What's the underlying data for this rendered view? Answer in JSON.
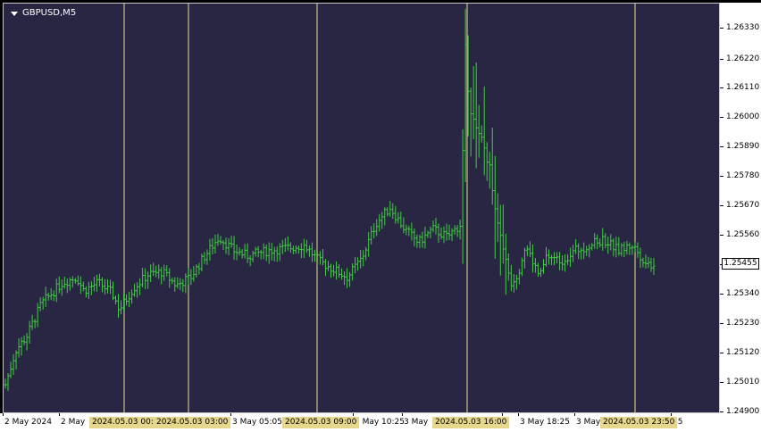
{
  "window": {
    "symbol_label": "GBPUSD,M5"
  },
  "price_axis": {
    "labels": [
      "1.26330",
      "1.26220",
      "1.26110",
      "1.26000",
      "1.25890",
      "1.25780",
      "1.25670",
      "1.25560",
      "1.25450",
      "1.25340",
      "1.25230",
      "1.25120",
      "1.25010",
      "1.24900"
    ],
    "current_price": "1.25455"
  },
  "time_axis": {
    "labels": [
      "2 May 2024",
      "2 May",
      "3 May 05:05",
      "3 May 10:25",
      "3 May",
      "5",
      "3 May 18:25",
      "3 May",
      "45"
    ]
  },
  "vertical_lines": [
    "2024.05.03 00:0",
    "2024.05.03 03:00",
    "2024.05.03 09:00",
    "2024.05.03 16:00",
    "2024.05.03 23:50"
  ],
  "colors": {
    "background": "#282642",
    "bars": "#3fcf3f",
    "vertical_line": "#ecdc8c",
    "label_bg": "#e6d78c"
  },
  "chart_data": {
    "type": "ohlc",
    "instrument": "GBPUSD",
    "timeframe": "M5",
    "ylim": [
      1.249,
      1.2638
    ],
    "close_path": [
      [
        0,
        1.25
      ],
      [
        1.5,
        1.2513
      ],
      [
        3,
        1.2518
      ],
      [
        5,
        1.253
      ],
      [
        8,
        1.2538
      ],
      [
        10,
        1.254
      ],
      [
        11,
        1.2535
      ],
      [
        13,
        1.2538
      ],
      [
        15,
        1.2534
      ],
      [
        16,
        1.2528
      ],
      [
        18,
        1.2536
      ],
      [
        20,
        1.2541
      ],
      [
        22,
        1.2542
      ],
      [
        24,
        1.2537
      ],
      [
        26,
        1.254
      ],
      [
        28,
        1.2548
      ],
      [
        30,
        1.2555
      ],
      [
        32,
        1.255
      ],
      [
        34,
        1.2548
      ],
      [
        37,
        1.255
      ],
      [
        40,
        1.2551
      ],
      [
        42,
        1.2552
      ],
      [
        44,
        1.2546
      ],
      [
        46,
        1.2543
      ],
      [
        48,
        1.254
      ],
      [
        50,
        1.2547
      ],
      [
        52,
        1.256
      ],
      [
        54,
        1.2566
      ],
      [
        56,
        1.2558
      ],
      [
        58,
        1.2553
      ],
      [
        60,
        1.2558
      ],
      [
        62,
        1.2555
      ],
      [
        64,
        1.256
      ],
      [
        64.5,
        1.263
      ],
      [
        65,
        1.2605
      ],
      [
        66,
        1.2595
      ],
      [
        67,
        1.259
      ],
      [
        68,
        1.258
      ],
      [
        69,
        1.256
      ],
      [
        70,
        1.2548
      ],
      [
        71,
        1.2538
      ],
      [
        72,
        1.2542
      ],
      [
        73,
        1.2552
      ],
      [
        74,
        1.2546
      ],
      [
        75,
        1.254
      ],
      [
        76,
        1.2548
      ],
      [
        78,
        1.2546
      ],
      [
        80,
        1.255
      ],
      [
        82,
        1.2552
      ],
      [
        84,
        1.2554
      ],
      [
        86,
        1.255
      ],
      [
        88,
        1.2552
      ],
      [
        90,
        1.2545
      ],
      [
        91,
        1.2545
      ]
    ],
    "notes": "Approximate close path in bar-time units; bars drawn as high-low ranges around this path."
  }
}
